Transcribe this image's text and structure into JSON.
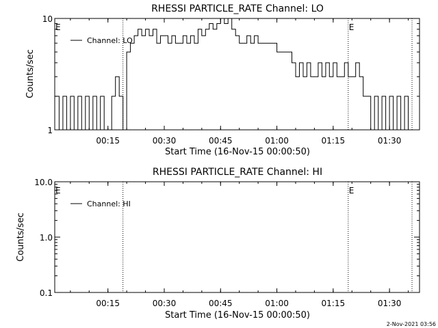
{
  "chart_data": [
    {
      "type": "line",
      "title": "RHESSI PARTICLE_RATE Channel: LO",
      "xlabel": "Start Time (16-Nov-15 00:00:50)",
      "ylabel": "Counts/sec",
      "yscale": "log",
      "ylim": [
        1,
        10
      ],
      "yticks": [
        "1",
        "10"
      ],
      "xlim": [
        "00:00:50",
        "01:38:00"
      ],
      "xticks": [
        "00:15",
        "00:30",
        "00:45",
        "01:00",
        "01:15",
        "01:30"
      ],
      "grid": false,
      "legend": "top-left",
      "markers": [
        {
          "label": "E",
          "x": "00:00:50"
        },
        {
          "label": "E",
          "x": "01:19:00"
        }
      ],
      "vlines_dotted": [
        "00:19:00",
        "01:19:00",
        "01:36:00"
      ],
      "series": [
        {
          "name": "Channel: LO",
          "x": [
            "00:01",
            "00:02",
            "00:03",
            "00:04",
            "00:05",
            "00:06",
            "00:07",
            "00:08",
            "00:09",
            "00:10",
            "00:11",
            "00:12",
            "00:13",
            "00:14",
            "00:15",
            "00:16",
            "00:17",
            "00:18",
            "00:19",
            "00:20",
            "00:21",
            "00:22",
            "00:23",
            "00:24",
            "00:25",
            "00:26",
            "00:27",
            "00:28",
            "00:29",
            "00:30",
            "00:31",
            "00:32",
            "00:33",
            "00:34",
            "00:35",
            "00:36",
            "00:37",
            "00:38",
            "00:39",
            "00:40",
            "00:41",
            "00:42",
            "00:43",
            "00:44",
            "00:45",
            "00:46",
            "00:47",
            "00:48",
            "00:49",
            "00:50",
            "00:51",
            "00:52",
            "00:53",
            "00:54",
            "00:55",
            "00:56",
            "00:57",
            "00:58",
            "00:59",
            "01:00",
            "01:01",
            "01:02",
            "01:03",
            "01:04",
            "01:05",
            "01:06",
            "01:07",
            "01:08",
            "01:09",
            "01:10",
            "01:11",
            "01:12",
            "01:13",
            "01:14",
            "01:15",
            "01:16",
            "01:17",
            "01:18",
            "01:19",
            "01:20",
            "01:21",
            "01:22",
            "01:23",
            "01:24",
            "01:25",
            "01:26",
            "01:27",
            "01:28",
            "01:29",
            "01:30",
            "01:31",
            "01:32",
            "01:33",
            "01:34",
            "01:35",
            "01:36"
          ],
          "values": [
            2,
            1,
            2,
            1,
            2,
            1,
            2,
            1,
            2,
            1,
            2,
            1,
            2,
            1,
            1,
            2,
            3,
            2,
            1,
            5,
            6,
            7,
            8,
            7,
            8,
            7,
            8,
            6,
            7,
            7,
            6,
            7,
            6,
            6,
            7,
            6,
            7,
            6,
            8,
            7,
            8,
            9,
            8,
            9,
            10,
            9,
            10,
            8,
            7,
            6,
            6,
            7,
            6,
            7,
            6,
            6,
            6,
            6,
            6,
            5,
            5,
            5,
            5,
            4,
            3,
            4,
            3,
            4,
            3,
            3,
            4,
            3,
            4,
            3,
            4,
            3,
            3,
            4,
            3,
            3,
            4,
            3,
            2,
            2,
            1,
            2,
            1,
            2,
            1,
            2,
            1,
            2,
            1,
            2,
            1,
            1
          ]
        }
      ]
    },
    {
      "type": "line",
      "title": "RHESSI PARTICLE_RATE Channel: HI",
      "xlabel": "Start Time (16-Nov-15 00:00:50)",
      "ylabel": "Counts/sec",
      "yscale": "log",
      "ylim": [
        0.1,
        10.0
      ],
      "yticks": [
        "0.1",
        "1.0",
        "10.0"
      ],
      "xlim": [
        "00:00:50",
        "01:38:00"
      ],
      "xticks": [
        "00:15",
        "00:30",
        "00:45",
        "01:00",
        "01:15",
        "01:30"
      ],
      "grid": false,
      "legend": "top-left",
      "markers": [
        {
          "label": "E",
          "x": "00:00:50"
        },
        {
          "label": "E",
          "x": "01:19:00"
        }
      ],
      "vlines_dotted": [
        "00:19:00",
        "01:19:00",
        "01:36:00"
      ],
      "series": [
        {
          "name": "Channel: HI",
          "x": [],
          "values": []
        }
      ]
    }
  ],
  "footer": {
    "date": "2-Nov-2021 03:56"
  }
}
